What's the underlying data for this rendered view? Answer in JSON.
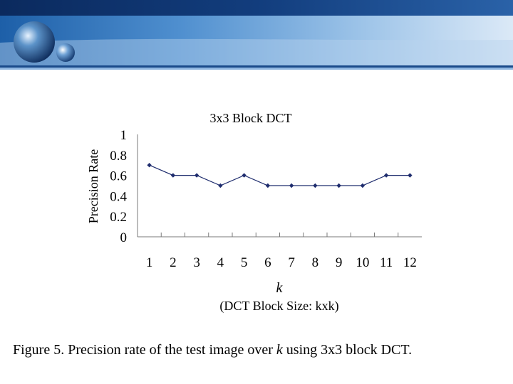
{
  "caption": {
    "prefix": "Figure 5.  Precision rate of the test image over ",
    "k": "k",
    "suffix": " using 3x3 block DCT."
  },
  "chart_data": {
    "type": "line",
    "title": "3x3 Block DCT",
    "xlabel": "k",
    "xlabel_sub": "(DCT Block Size: kxk)",
    "ylabel": "Precision Rate",
    "categories": [
      "1",
      "2",
      "3",
      "4",
      "5",
      "6",
      "7",
      "8",
      "9",
      "10",
      "11",
      "12"
    ],
    "values": [
      0.7,
      0.6,
      0.6,
      0.5,
      0.6,
      0.5,
      0.5,
      0.5,
      0.5,
      0.5,
      0.6,
      0.6
    ],
    "y_ticks": [
      "0",
      "0.2",
      "0.4",
      "0.6",
      "0.8",
      "1"
    ],
    "ylim": [
      0,
      1
    ],
    "grid": false,
    "legend": "none",
    "marker": "diamond",
    "line_color": "#1f2d6e"
  },
  "theme": {
    "banner_dark": "#0b2a5e",
    "banner_mid": "#2f6fb4",
    "banner_light": "#d7e6f5"
  }
}
